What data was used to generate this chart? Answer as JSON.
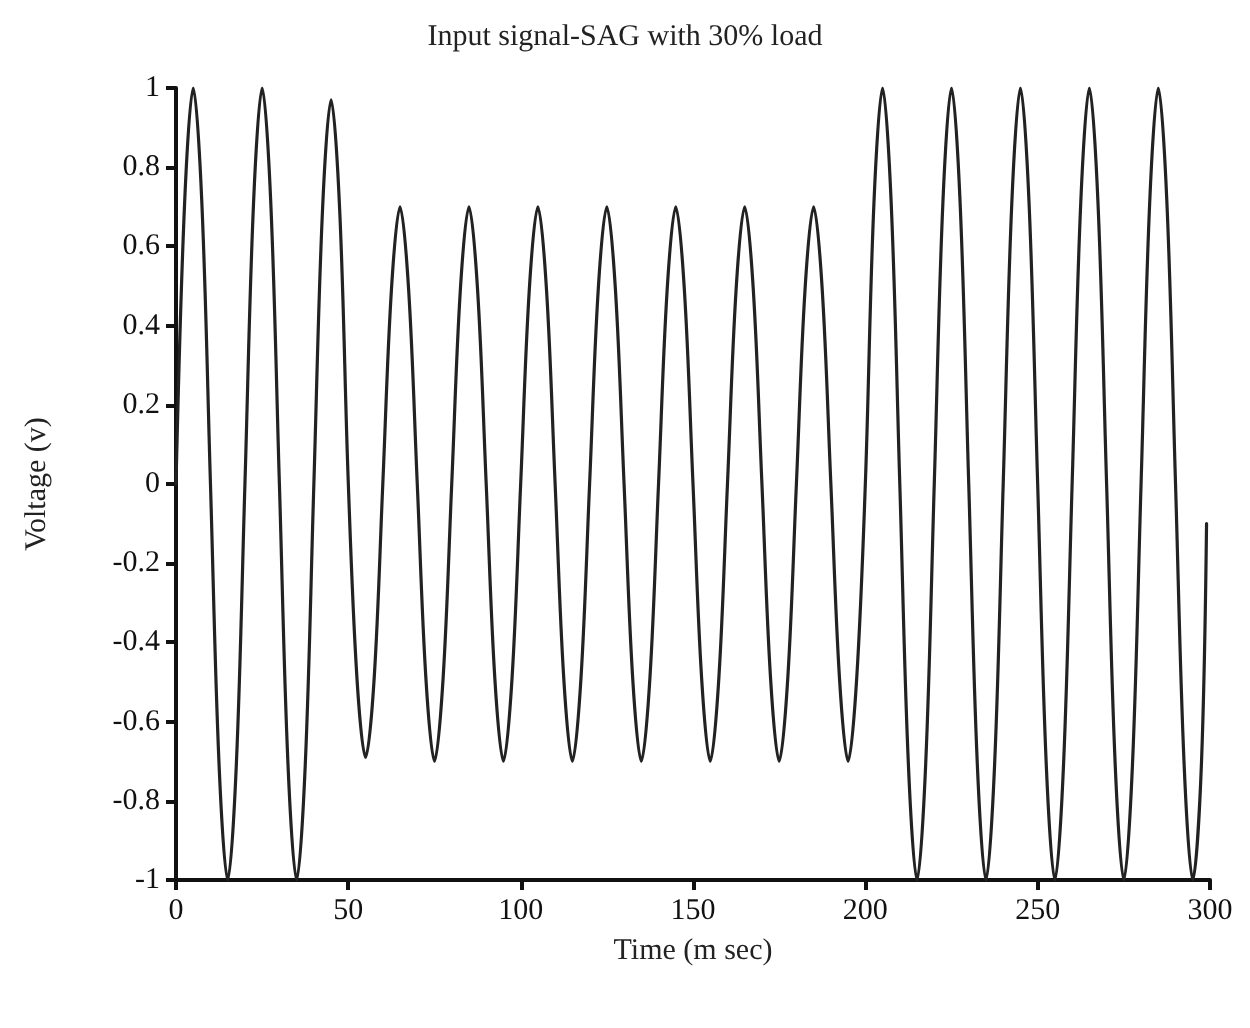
{
  "chart_data": {
    "type": "line",
    "title": "Input signal-SAG with 30% load",
    "xlabel": "Time (m sec)",
    "ylabel": "Voltage (v)",
    "xlim": [
      0,
      300
    ],
    "xticks": [
      0,
      50,
      100,
      150,
      200,
      250,
      300
    ],
    "ylim": [
      -1,
      1
    ],
    "yticks": [
      -1,
      -0.8,
      -0.6,
      -0.4,
      -0.2,
      0,
      0.2,
      0.4,
      0.6,
      0.8,
      1
    ],
    "grid": false,
    "marker": "none",
    "line_style": "solid",
    "x": [
      0,
      2.5,
      5,
      7.5,
      10,
      12.5,
      15,
      17.5,
      20,
      22.5,
      25,
      27.5,
      30,
      32.5,
      35,
      37.5,
      40,
      42.5,
      45,
      47.5,
      50,
      52.5,
      55,
      57.5,
      60,
      62.5,
      65,
      67.5,
      70,
      72.5,
      75,
      77.5,
      80,
      82.5,
      85,
      87.5,
      90,
      92.5,
      95,
      97.5,
      100,
      102.5,
      105,
      107.5,
      110,
      112.5,
      115,
      117.5,
      120,
      122.5,
      125,
      127.5,
      130,
      132.5,
      135,
      137.5,
      140,
      142.5,
      145,
      147.5,
      150,
      152.5,
      155,
      157.5,
      160,
      162.5,
      165,
      167.5,
      170,
      172.5,
      175,
      177.5,
      180,
      182.5,
      185,
      187.5,
      190,
      192.5,
      195,
      197.5,
      200,
      202.5,
      205,
      207.5,
      210,
      212.5,
      215,
      217.5,
      220,
      222.5,
      225,
      227.5,
      230,
      232.5,
      235,
      237.5,
      240,
      242.5,
      245,
      247.5,
      250,
      252.5,
      255,
      257.5,
      260,
      262.5,
      265,
      267.5,
      270,
      272.5,
      275,
      277.5,
      280,
      282.5,
      285,
      287.5,
      290,
      292.5,
      295,
      297.5,
      299
    ],
    "series": [
      {
        "color": "#222222",
        "values": [
          0,
          0.71,
          1,
          0.71,
          0,
          -0.71,
          -1,
          -0.71,
          0,
          0.71,
          1,
          0.71,
          0,
          -0.71,
          -1,
          -0.71,
          0,
          0.69,
          0.97,
          0.69,
          0,
          -0.49,
          -0.69,
          -0.49,
          0,
          0.49,
          0.7,
          0.49,
          0,
          -0.49,
          -0.7,
          -0.49,
          0,
          0.49,
          0.7,
          0.49,
          0,
          -0.49,
          -0.7,
          -0.49,
          0,
          0.49,
          0.7,
          0.49,
          0,
          -0.49,
          -0.7,
          -0.49,
          0,
          0.49,
          0.7,
          0.49,
          0,
          -0.49,
          -0.7,
          -0.49,
          0,
          0.49,
          0.7,
          0.49,
          0,
          -0.49,
          -0.7,
          -0.49,
          0,
          0.49,
          0.7,
          0.49,
          0,
          -0.49,
          -0.7,
          -0.49,
          0,
          0.49,
          0.7,
          0.49,
          0,
          -0.49,
          -0.7,
          -0.49,
          0,
          0.71,
          1,
          0.71,
          0,
          -0.71,
          -1,
          -0.71,
          0,
          0.71,
          1,
          0.71,
          0,
          -0.71,
          -1,
          -0.71,
          0,
          0.71,
          1,
          0.71,
          0,
          -0.71,
          -1,
          -0.71,
          0,
          0.71,
          1,
          0.71,
          0,
          -0.71,
          -1,
          -0.71,
          0,
          0.71,
          1,
          0.71,
          0,
          -0.71,
          -1,
          -0.71,
          -0.1
        ]
      }
    ]
  }
}
